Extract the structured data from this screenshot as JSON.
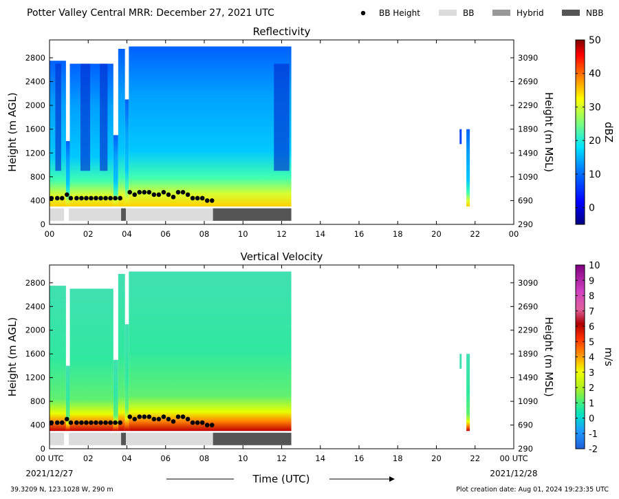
{
  "header": {
    "title": "Potter Valley Central MRR:  December 27, 2021 UTC"
  },
  "legend": [
    {
      "label": "BB Height",
      "kind": "dot",
      "color": "#000000"
    },
    {
      "label": "BB",
      "kind": "bar",
      "color": "#dcdcdc"
    },
    {
      "label": "Hybrid",
      "kind": "bar",
      "color": "#999999"
    },
    {
      "label": "NBB",
      "kind": "bar",
      "color": "#555555"
    }
  ],
  "colors": {
    "bb": "#dcdcdc",
    "hybrid": "#999999",
    "nbb": "#555555",
    "dot": "#000000"
  },
  "panels": [
    {
      "title": "Reflectivity",
      "ylabel_left": "Height (m AGL)",
      "ylabel_right": "Height (m MSL)",
      "colorbar_label": "dBZ",
      "colorbar_ticks": [
        "50",
        "40",
        "30",
        "20",
        "10",
        "0"
      ],
      "colorbar_values": [
        50,
        40,
        30,
        20,
        10,
        0
      ],
      "colorbar_range": [
        -5,
        50
      ]
    },
    {
      "title": "Vertical Velocity",
      "ylabel_left": "Height (m AGL)",
      "ylabel_right": "Height (m MSL)",
      "colorbar_label": "m/s",
      "colorbar_ticks": [
        "10",
        "9",
        "8",
        "7",
        "6",
        "5",
        "4",
        "3",
        "2",
        "1",
        "0",
        "-1",
        "-2"
      ],
      "colorbar_values": [
        10,
        9,
        8,
        7,
        6,
        5,
        4,
        3,
        2,
        1,
        0,
        -1,
        -2
      ],
      "colorbar_range": [
        -2,
        10
      ]
    }
  ],
  "axes": {
    "x_ticks_top": [
      "00",
      "02",
      "04",
      "06",
      "08",
      "10",
      "12",
      "14",
      "16",
      "18",
      "20",
      "22",
      "00"
    ],
    "x_ticks_bottom": [
      "00 UTC",
      "02",
      "04",
      "06",
      "08",
      "10",
      "12",
      "14",
      "16",
      "18",
      "20",
      "22",
      "00 UTC"
    ],
    "x_values": [
      0,
      2,
      4,
      6,
      8,
      10,
      12,
      14,
      16,
      18,
      20,
      22,
      24
    ],
    "y_left_ticks": [
      "0",
      "400",
      "800",
      "1200",
      "1600",
      "2000",
      "2400",
      "2800"
    ],
    "y_left_values": [
      0,
      400,
      800,
      1200,
      1600,
      2000,
      2400,
      2800
    ],
    "y_right_ticks": [
      "290",
      "690",
      "1090",
      "1490",
      "1890",
      "2290",
      "2690",
      "3090"
    ],
    "y_right_values": [
      0,
      400,
      800,
      1200,
      1600,
      2000,
      2400,
      2800
    ],
    "xlim": [
      0,
      24
    ],
    "ylim": [
      0,
      3100
    ],
    "xlabel": "Time (UTC)",
    "start_date": "2021/12/27",
    "end_date": "2021/12/28"
  },
  "chart_data": [
    {
      "type": "heatmap",
      "title": "Reflectivity",
      "unit": "dBZ",
      "data_coverage_hours": [
        [
          0,
          12.5
        ],
        [
          21.2,
          21.8
        ]
      ],
      "bright_band_height_m_agl": {
        "x": [
          0.1,
          0.4,
          0.65,
          0.9,
          1.1,
          1.4,
          1.65,
          1.9,
          2.15,
          2.4,
          2.65,
          2.9,
          3.15,
          3.4,
          3.65,
          4.15,
          4.4,
          4.65,
          4.9,
          5.15,
          5.4,
          5.65,
          5.9,
          6.15,
          6.4,
          6.65,
          6.9,
          7.15,
          7.4,
          7.65,
          7.9,
          8.15,
          8.4
        ],
        "y": [
          440,
          440,
          440,
          500,
          440,
          440,
          440,
          440,
          440,
          440,
          440,
          440,
          440,
          440,
          440,
          540,
          500,
          540,
          540,
          540,
          500,
          500,
          540,
          500,
          460,
          540,
          540,
          500,
          440,
          440,
          440,
          400,
          400
        ]
      },
      "bb_type_segments": [
        {
          "type": "BB",
          "start": 0.0,
          "end": 0.75
        },
        {
          "type": "BB",
          "start": 1.0,
          "end": 3.7
        },
        {
          "type": "NBB",
          "start": 3.7,
          "end": 3.95
        },
        {
          "type": "BB",
          "start": 3.95,
          "end": 8.45
        },
        {
          "type": "NBB",
          "start": 8.45,
          "end": 12.5
        }
      ]
    },
    {
      "type": "heatmap",
      "title": "Vertical Velocity",
      "unit": "m/s",
      "data_coverage_hours": [
        [
          0,
          12.5
        ],
        [
          21.2,
          21.8
        ]
      ],
      "bright_band_height_m_agl": {
        "x": [
          0.1,
          0.4,
          0.65,
          0.9,
          1.1,
          1.4,
          1.65,
          1.9,
          2.15,
          2.4,
          2.65,
          2.9,
          3.15,
          3.4,
          3.65,
          4.15,
          4.4,
          4.65,
          4.9,
          5.15,
          5.4,
          5.65,
          5.9,
          6.15,
          6.4,
          6.65,
          6.9,
          7.15,
          7.4,
          7.65,
          7.9,
          8.15,
          8.4
        ],
        "y": [
          440,
          440,
          440,
          500,
          440,
          440,
          440,
          440,
          440,
          440,
          440,
          440,
          440,
          440,
          440,
          540,
          500,
          540,
          540,
          540,
          500,
          500,
          540,
          500,
          460,
          540,
          540,
          500,
          440,
          440,
          440,
          400,
          400
        ]
      },
      "bb_type_segments": [
        {
          "type": "BB",
          "start": 0.0,
          "end": 0.75
        },
        {
          "type": "BB",
          "start": 1.0,
          "end": 3.7
        },
        {
          "type": "NBB",
          "start": 3.7,
          "end": 3.95
        },
        {
          "type": "BB",
          "start": 3.95,
          "end": 8.45
        },
        {
          "type": "NBB",
          "start": 8.45,
          "end": 12.5
        }
      ]
    }
  ],
  "footer": {
    "location": "39.3209 N, 123.1028 W, 290 m",
    "created": "Plot creation date: Aug 01, 2024 19:23:35 UTC"
  }
}
